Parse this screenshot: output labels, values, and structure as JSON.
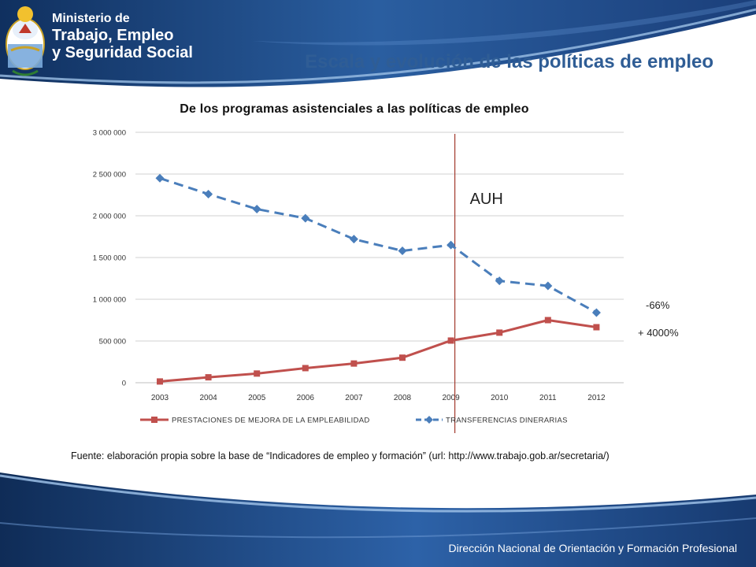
{
  "header": {
    "org_line1": "Ministerio de",
    "org_line2": "Trabajo, Empleo",
    "org_line3": "y Seguridad Social",
    "slide_title": "Escala y evolución de las políticas de empleo"
  },
  "colors": {
    "header_blue": "#1b3f7a",
    "title_blue": "#2f5d95",
    "series_red": "#c0504d",
    "series_blue": "#4a7ebb",
    "marker_line": "#a23a2e"
  },
  "chart_data": {
    "type": "line",
    "title": "De los programas asistenciales a las políticas de empleo",
    "xlabel": "",
    "ylabel": "",
    "categories": [
      "2003",
      "2004",
      "2005",
      "2006",
      "2007",
      "2008",
      "2009",
      "2010",
      "2011",
      "2012"
    ],
    "ylim": [
      0,
      3000000
    ],
    "yticks": [
      0,
      500000,
      1000000,
      1500000,
      2000000,
      2500000,
      3000000
    ],
    "ytick_labels": [
      "0",
      "500 000",
      "1 000 000",
      "1 500 000",
      "2 000 000",
      "2 500 000",
      "3 000 000"
    ],
    "grid": "horizontal",
    "legend_position": "bottom",
    "series": [
      {
        "name": "PRESTACIONES DE MEJORA DE LA EMPLEABILIDAD",
        "values": [
          15000,
          65000,
          110000,
          175000,
          230000,
          300000,
          505000,
          600000,
          750000,
          665000
        ],
        "color": "#c0504d",
        "style": "solid",
        "marker": "square"
      },
      {
        "name": "TRANSFERENCIAS DINERARIAS",
        "values": [
          2450000,
          2260000,
          2080000,
          1970000,
          1720000,
          1580000,
          1650000,
          1220000,
          1160000,
          840000
        ],
        "color": "#4a7ebb",
        "style": "dashed",
        "marker": "diamond"
      }
    ],
    "annotations": [
      {
        "text": "AUH",
        "type": "vertical-line",
        "at": "2009"
      },
      {
        "text": "-66%",
        "series": "TRANSFERENCIAS DINERARIAS"
      },
      {
        "text": "+ 4000%",
        "series": "PRESTACIONES DE MEJORA DE LA EMPLEABILIDAD"
      }
    ]
  },
  "source_note": "Fuente: elaboración propia sobre la base de “Indicadores de empleo y formación” (url: http://www.trabajo.gob.ar/secretaria/)",
  "footer": {
    "text": "Dirección Nacional de Orientación y Formación Profesional"
  }
}
